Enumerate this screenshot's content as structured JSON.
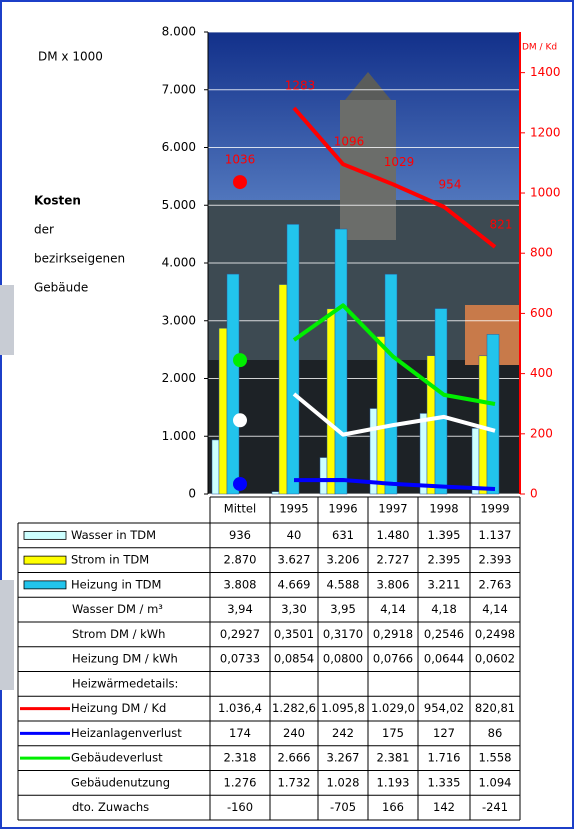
{
  "chart_data": {
    "type": "bar",
    "y_unit_label": "DM x 1000",
    "y2_unit_label": "DM / Kd",
    "side_title": "Kosten",
    "side_text": [
      "der",
      "bezirkseigenen",
      "Gebäude"
    ],
    "categories": [
      "Mittel",
      "1995",
      "1996",
      "1997",
      "1998",
      "1999"
    ],
    "ylim": [
      0,
      8000
    ],
    "yticks": [
      0,
      {
        "value": 1000,
        "label": "1.000"
      },
      {
        "value": 2000,
        "label": "2.000"
      },
      {
        "value": 3000,
        "label": "3.000"
      },
      {
        "value": 4000,
        "label": "4.000"
      },
      {
        "value": 5000,
        "label": "5.000"
      },
      {
        "value": 6000,
        "label": "6.000"
      },
      {
        "value": 7000,
        "label": "7.000"
      },
      {
        "value": 8000,
        "label": "8.000"
      }
    ],
    "y2lim": [
      0,
      1535
    ],
    "y2ticks": [
      0,
      200,
      400,
      600,
      800,
      1000,
      1200,
      1400
    ],
    "grid": true,
    "series": [
      {
        "name": "Wasser in TDM",
        "kind": "bar",
        "color": "#ccffff",
        "values": [
          936,
          40,
          631,
          1480,
          1395,
          1137
        ],
        "value_labels": [
          "936",
          "40",
          "631",
          "1.480",
          "1.395",
          "1.137"
        ]
      },
      {
        "name": "Strom in TDM",
        "kind": "bar",
        "color": "#ffff00",
        "values": [
          2870,
          3627,
          3206,
          2727,
          2395,
          2393
        ],
        "value_labels": [
          "2.870",
          "3.627",
          "3.206",
          "2.727",
          "2.395",
          "2.393"
        ]
      },
      {
        "name": "Heizung in TDM",
        "kind": "bar",
        "color": "#22c4ec",
        "values": [
          3808,
          4669,
          4588,
          3806,
          3211,
          2763
        ],
        "value_labels": [
          "3.808",
          "4.669",
          "4.588",
          "3.806",
          "3.211",
          "2.763"
        ]
      },
      {
        "name": "Heizung DM / Kd",
        "kind": "line",
        "axis": "y2",
        "color": "#ff0000",
        "values": [
          1036.4,
          1282.6,
          1095.8,
          1029.0,
          954.02,
          820.81
        ],
        "value_labels": [
          "1.036,4",
          "1.282,6",
          "1.095,8",
          "1.029,0",
          "954,02",
          "820,81"
        ],
        "chart_labels": [
          "1036",
          "1283",
          "1096",
          "1029",
          "954",
          "821"
        ]
      },
      {
        "name": "Heizanlagenverlust",
        "kind": "line",
        "color": "#0000ff",
        "values": [
          174,
          240,
          242,
          175,
          127,
          86
        ]
      },
      {
        "name": "Gebäudeverlust",
        "kind": "line",
        "color": "#00ee00",
        "values": [
          2318,
          2666,
          3267,
          2381,
          1716,
          1558
        ],
        "value_labels": [
          "2.318",
          "2.666",
          "3.267",
          "2.381",
          "1.716",
          "1.558"
        ]
      },
      {
        "name": "Gebäudenutzung",
        "kind": "line",
        "color": "#ffffff",
        "values": [
          1276,
          1732,
          1028,
          1193,
          1335,
          1094
        ],
        "value_labels": [
          "1.276",
          "1.732",
          "1.028",
          "1.193",
          "1.335",
          "1.094"
        ]
      }
    ],
    "table_rows": [
      {
        "name": "Wasser DM / m³",
        "cells": [
          "3,94",
          "3,30",
          "3,95",
          "4,14",
          "4,18",
          "4,14"
        ]
      },
      {
        "name": "Strom DM / kWh",
        "cells": [
          "0,2927",
          "0,3501",
          "0,3170",
          "0,2918",
          "0,2546",
          "0,2498"
        ]
      },
      {
        "name": "Heizung DM / kWh",
        "cells": [
          "0,0733",
          "0,0854",
          "0,0800",
          "0,0766",
          "0,0644",
          "0,0602"
        ]
      },
      {
        "name": "dto. Zuwachs",
        "cells": [
          "-160",
          null,
          "-705",
          "166",
          "142",
          "-241"
        ]
      }
    ],
    "table_heading": "Heizwärmedetails:"
  }
}
